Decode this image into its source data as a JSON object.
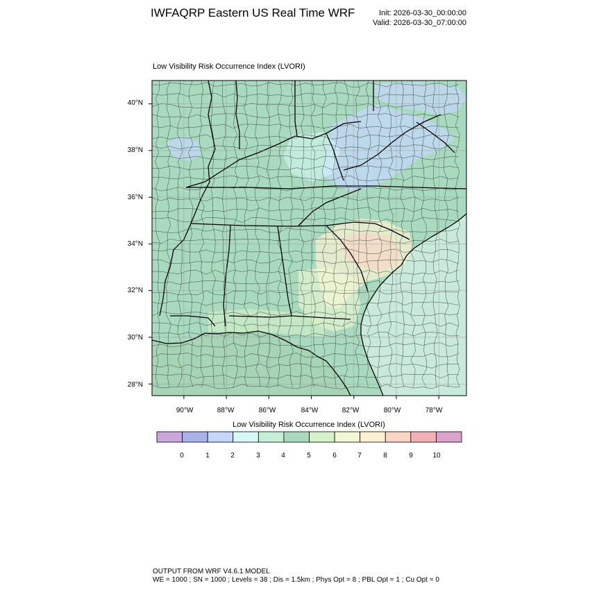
{
  "header": {
    "title": "IWFAQRP Eastern US Real Time WRF",
    "init": "Init: 2026-03-30_00:00:00",
    "valid": "Valid: 2026-03-30_07:00:00"
  },
  "map": {
    "label": "Low Visibility Risk Occurrence Index   (LVORI)",
    "lon_range": [
      -91.5,
      -76.7
    ],
    "lat_range": [
      27.5,
      41.0
    ],
    "lon_ticks": [
      "90°W",
      "88°W",
      "86°W",
      "84°W",
      "82°W",
      "80°W",
      "78°W"
    ],
    "lat_ticks": [
      "40°N",
      "38°N",
      "36°N",
      "34°N",
      "32°N",
      "30°N",
      "28°N"
    ],
    "land_color": "#a9d9be",
    "ocean_color": "#c9e9da",
    "gulf_color": "#a7d4b6"
  },
  "colorbar": {
    "title": "Low Visibility Risk Occurrence Index  (LVORI)",
    "colors": [
      "#caa6dc",
      "#abb2ea",
      "#c4d6f9",
      "#d6f9f6",
      "#c6efd8",
      "#a9d9be",
      "#d7f1ca",
      "#f2f8d3",
      "#fef1d2",
      "#fcd5c4",
      "#f1b1b6",
      "#d8a3cc"
    ],
    "labels": [
      "0",
      "1",
      "2",
      "3",
      "4",
      "5",
      "6",
      "7",
      "8",
      "9",
      "10"
    ]
  },
  "footer": {
    "line1": "OUTPUT FROM WRF V4.6.1 MODEL",
    "line2": "WE = 1000 ; SN = 1000 ; Levels = 38 ; Dis = 1.5km ; Phys Opt = 8 ; PBL Opt = 1 ; Cu Opt = 0"
  }
}
